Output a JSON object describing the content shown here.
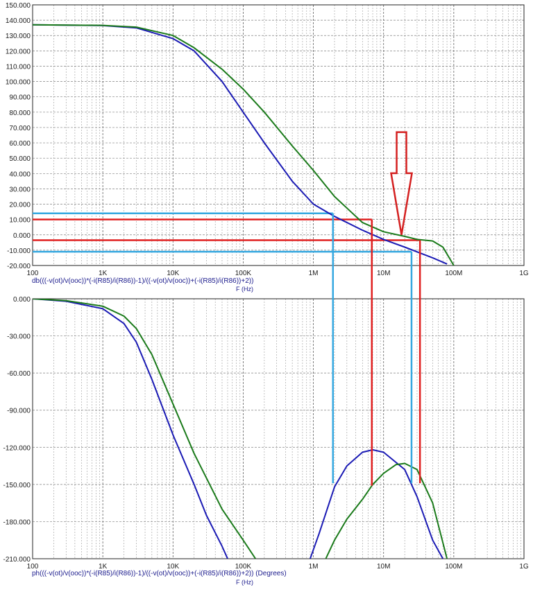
{
  "chart_data": [
    {
      "type": "line",
      "x_scale": "log",
      "xlim": [
        100,
        1000000000
      ],
      "ylim": [
        -20,
        150
      ],
      "x_ticks": [
        "100",
        "1K",
        "10K",
        "100K",
        "1M",
        "10M",
        "100M",
        "1G"
      ],
      "y_ticks": [
        "-20.000",
        "-10.000",
        "0.000",
        "10.000",
        "20.000",
        "30.000",
        "40.000",
        "50.000",
        "60.000",
        "70.000",
        "80.000",
        "90.000",
        "100.000",
        "110.000",
        "120.000",
        "130.000",
        "140.000",
        "150.000"
      ],
      "xlabel": "db(((-v(ot)/v(ooc))*(-i(R85)/i(R86))-1)/((-v(ot)/v(ooc))+(-i(R85)/i(R86))+2))",
      "x_axis_name": "F (Hz)",
      "grid": true,
      "series": [
        {
          "color": "#1a1ab4",
          "x": [
            100,
            1000,
            3000,
            10000,
            20000,
            50000,
            100000,
            200000,
            500000,
            1000000,
            2000000,
            5000000,
            10000000,
            20000000,
            50000000,
            80000000
          ],
          "y": [
            137,
            136.5,
            135,
            128,
            120,
            100,
            80,
            60,
            35,
            20,
            12,
            3,
            -3,
            -8,
            -15,
            -19
          ]
        },
        {
          "color": "#1a7a1a",
          "x": [
            100,
            1000,
            3000,
            10000,
            20000,
            50000,
            100000,
            200000,
            500000,
            1000000,
            2000000,
            5000000,
            10000000,
            20000000,
            30000000,
            50000000,
            70000000,
            100000000
          ],
          "y": [
            137,
            136.6,
            135.5,
            130,
            122,
            108,
            95,
            80,
            58,
            42,
            25,
            8,
            2,
            -1,
            -3,
            -4,
            -8,
            -20
          ]
        }
      ],
      "markers": [
        {
          "color": "#35a8e0",
          "y": 14,
          "x": 1900000
        },
        {
          "color": "#35a8e0",
          "y": -11,
          "x": 25000000
        },
        {
          "color": "#e02020",
          "y": 10,
          "x": 6800000
        },
        {
          "color": "#e02020",
          "y": -3.5,
          "x": 33000000
        }
      ],
      "arrow": {
        "color": "#d42020",
        "x": 18000000,
        "y_top": 67,
        "y_tip": 0
      }
    },
    {
      "type": "line",
      "x_scale": "log",
      "xlim": [
        100,
        1000000000
      ],
      "ylim": [
        -210,
        0
      ],
      "x_ticks": [
        "100",
        "1K",
        "10K",
        "100K",
        "1M",
        "10M",
        "100M",
        "1G"
      ],
      "y_ticks": [
        "-210.000",
        "-180.000",
        "-150.000",
        "-120.000",
        "-90.000",
        "-60.000",
        "-30.000",
        "0.000"
      ],
      "xlabel": "ph(((-v(ot)/v(ooc))*(-i(R85)/i(R86))-1)/((-v(ot)/v(ooc))+(-i(R85)/i(R86))+2)) (Degrees)",
      "x_axis_name": "F (Hz)",
      "grid": true,
      "series": [
        {
          "color": "#1a1ab4",
          "segments": [
            {
              "x": [
                100,
                300,
                1000,
                2000,
                3000,
                5000,
                10000,
                20000,
                30000,
                50000,
                60000
              ],
              "y": [
                0,
                -2,
                -8,
                -20,
                -35,
                -65,
                -110,
                -150,
                -175,
                -200,
                -210
              ]
            },
            {
              "x": [
                900000,
                1200000,
                2000000,
                3000000,
                5000000,
                7000000,
                10000000,
                20000000,
                30000000,
                50000000,
                70000000
              ],
              "y": [
                -210,
                -190,
                -152,
                -135,
                -124,
                -122,
                -124,
                -138,
                -160,
                -195,
                -210
              ]
            }
          ]
        },
        {
          "color": "#1a7a1a",
          "segments": [
            {
              "x": [
                100,
                300,
                1000,
                2000,
                3000,
                5000,
                10000,
                20000,
                50000,
                100000,
                150000
              ],
              "y": [
                0,
                -1.5,
                -6,
                -14,
                -24,
                -45,
                -85,
                -125,
                -170,
                -195,
                -210
              ]
            },
            {
              "x": [
                1500000,
                2000000,
                3000000,
                5000000,
                7000000,
                10000000,
                15000000,
                20000000,
                30000000,
                50000000,
                80000000
              ],
              "y": [
                -210,
                -195,
                -178,
                -162,
                -150,
                -141,
                -134,
                -133,
                -138,
                -165,
                -210
              ]
            }
          ]
        }
      ],
      "markers": [
        {
          "color": "#35a8e0",
          "x": 1900000,
          "y": -149
        },
        {
          "color": "#35a8e0",
          "x": 25000000,
          "y": -149
        },
        {
          "color": "#e02020",
          "x": 6800000,
          "y": -151
        },
        {
          "color": "#e02020",
          "x": 33000000,
          "y": -149
        }
      ]
    }
  ]
}
